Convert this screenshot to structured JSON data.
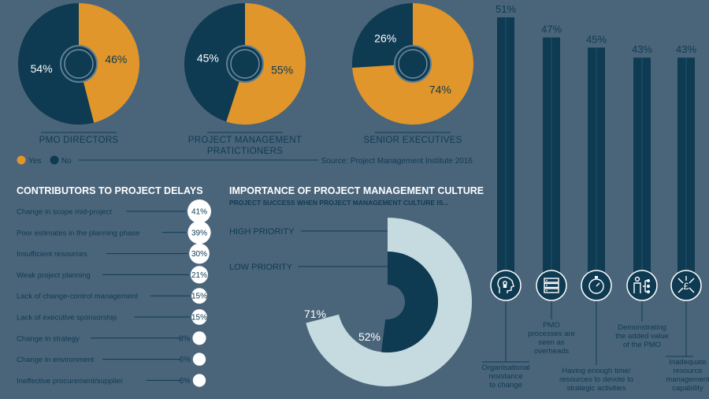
{
  "colors": {
    "background": "#4a657a",
    "yes": "#e0962a",
    "no": "#0e3a52",
    "light": "#c6dbe0",
    "white": "#ffffff"
  },
  "pies_legend": {
    "yes": "Yes",
    "no": "No"
  },
  "pies_source": "Source: Project Management Institute 2016",
  "delays_title": "CONTRIBUTORS TO PROJECT DELAYS",
  "culture_title": "IMPORTANCE OF PROJECT MANAGEMENT CULTURE",
  "culture_subtitle": "PROJECT SUCCESS WHEN PROJECT MANAGEMENT CULTURE IS...",
  "chart_data": [
    {
      "type": "pie",
      "title": "PMO DIRECTORS",
      "slices": [
        {
          "name": "Yes",
          "value": 46,
          "label": "46%"
        },
        {
          "name": "No",
          "value": 54,
          "label": "54%"
        }
      ]
    },
    {
      "type": "pie",
      "title": "PROJECT MANAGEMENT PRATICTIONERS",
      "title_lines": [
        "PROJECT MANAGEMENT",
        "PRATICTIONERS"
      ],
      "slices": [
        {
          "name": "Yes",
          "value": 55,
          "label": "55%"
        },
        {
          "name": "No",
          "value": 45,
          "label": "45%"
        }
      ]
    },
    {
      "type": "pie",
      "title": "SENIOR EXECUTIVES",
      "slices": [
        {
          "name": "Yes",
          "value": 74,
          "label": "74%"
        },
        {
          "name": "No",
          "value": 26,
          "label": "26%"
        }
      ]
    },
    {
      "type": "bar",
      "title": "CONTRIBUTORS TO PROJECT DELAYS",
      "categories": [
        "Change in scope mid-project",
        "Poor estimates in the planning phase",
        "Insufficient resources",
        "Weak project planning",
        "Lack of change-control management",
        "Lack of executive sponsorship",
        "Change in strategy",
        "Change in environment",
        "Ineffective procurement/supplier"
      ],
      "values": [
        41,
        39,
        30,
        21,
        15,
        15,
        8,
        6,
        6
      ],
      "labels": [
        "41%",
        "39%",
        "30%",
        "21%",
        "15%",
        "15%",
        "8%",
        "6%",
        "6%"
      ]
    },
    {
      "type": "pie",
      "title": "IMPORTANCE OF PROJECT MANAGEMENT CULTURE",
      "categories": [
        "HIGH PRIORITY",
        "LOW PRIORITY"
      ],
      "values": [
        71,
        52
      ],
      "labels": [
        "71%",
        "52%"
      ]
    },
    {
      "type": "bar",
      "categories": [
        "Organisational resistance to change",
        "PMO processes are seen as overheads",
        "Having enough time/ resources to devote to strategic activities",
        "Demonstrating the added value of the PMO",
        "Inadequate resource management capability"
      ],
      "category_lines": [
        [
          "Organisational",
          "resistance",
          "to change"
        ],
        [
          "PMO",
          "processes are",
          "seen as",
          "overheads"
        ],
        [
          "Having enough time/",
          "resources to devote to",
          "strategic activities"
        ],
        [
          "Demonstrating",
          "the added value",
          "of the PMO"
        ],
        [
          "Inadequate",
          "resource",
          "management",
          "capability"
        ]
      ],
      "icons": [
        "head-lock-icon",
        "server-rack-icon",
        "stopwatch-icon",
        "people-network-icon",
        "currency-arrows-icon"
      ],
      "values": [
        51,
        47,
        45,
        43,
        43
      ],
      "labels": [
        "51%",
        "47%",
        "45%",
        "43%",
        "43%"
      ]
    }
  ]
}
